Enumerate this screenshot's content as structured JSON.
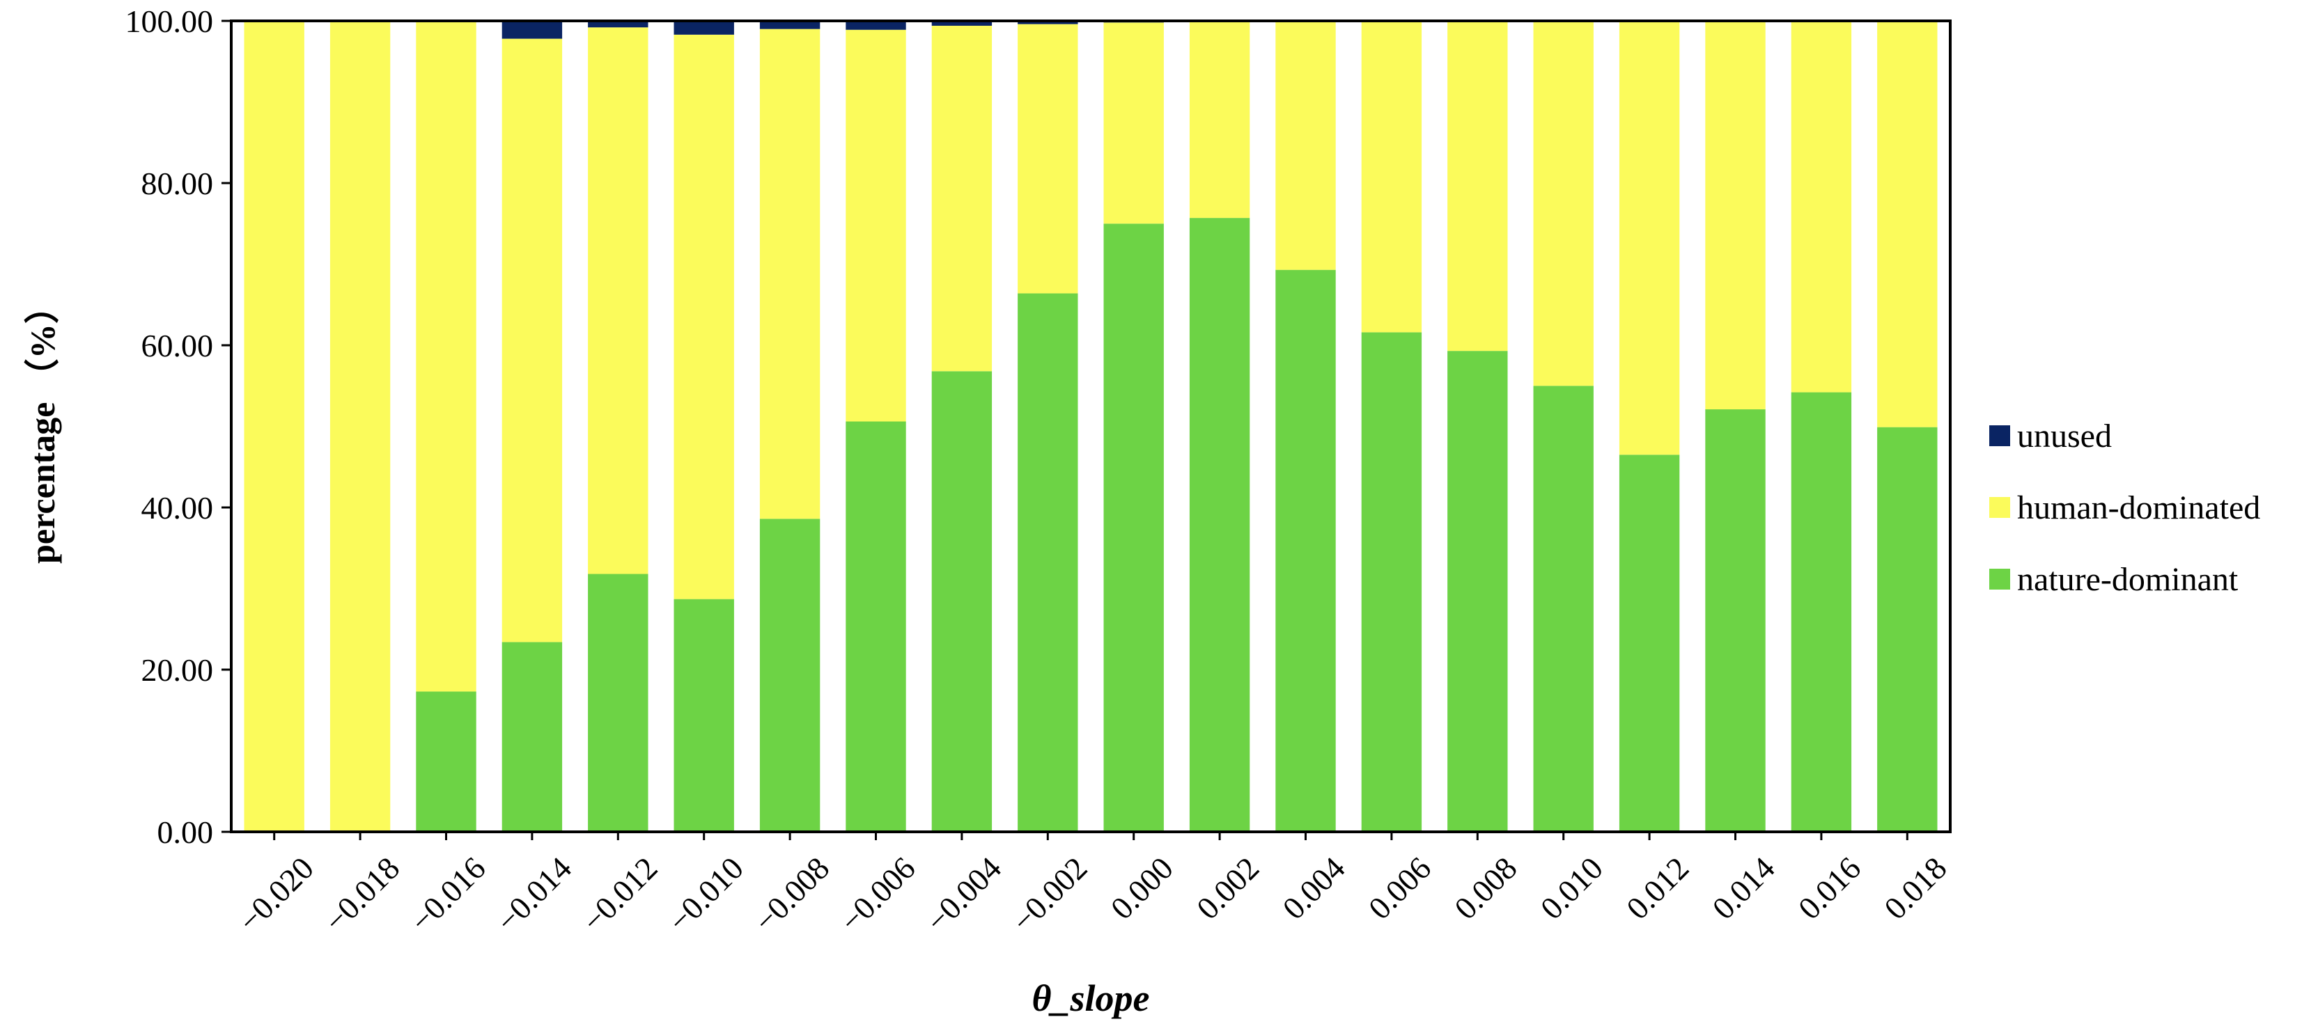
{
  "chart_data": {
    "type": "bar",
    "stacked": true,
    "title": "",
    "xlabel": "θ_slope",
    "ylabel": "percentage （%）",
    "ylim": [
      0,
      100
    ],
    "yticks": [
      "0.00",
      "20.00",
      "40.00",
      "60.00",
      "80.00",
      "100.00"
    ],
    "categories": [
      "−0.020",
      "−0.018",
      "−0.016",
      "−0.014",
      "−0.012",
      "−0.010",
      "−0.008",
      "−0.006",
      "−0.004",
      "−0.002",
      "0.000",
      "0.002",
      "0.004",
      "0.006",
      "0.008",
      "0.010",
      "0.012",
      "0.014",
      "0.016",
      "0.018"
    ],
    "series": [
      {
        "name": "nature-dominant",
        "color": "#6dd345",
        "values": [
          0,
          0,
          17.3,
          23.4,
          31.8,
          28.7,
          38.6,
          50.6,
          56.8,
          66.4,
          75.0,
          75.7,
          69.3,
          61.6,
          59.3,
          55.0,
          46.5,
          52.1,
          54.2,
          49.9
        ]
      },
      {
        "name": "human-dominated",
        "color": "#fbfb5b",
        "values": [
          100,
          100,
          82.7,
          74.4,
          67.4,
          69.6,
          60.4,
          48.3,
          42.6,
          33.2,
          24.8,
          24.2,
          30.6,
          38.3,
          40.6,
          44.9,
          53.4,
          47.8,
          45.7,
          50.0
        ]
      },
      {
        "name": "unused",
        "color": "#0a2463",
        "values": [
          0,
          0,
          0,
          2.2,
          0.8,
          1.7,
          1.0,
          1.1,
          0.6,
          0.4,
          0.2,
          0.1,
          0.1,
          0.1,
          0.1,
          0.1,
          0.1,
          0.1,
          0.1,
          0.1
        ]
      }
    ],
    "legend": {
      "placement": "right",
      "order": [
        "unused",
        "human-dominated",
        "nature-dominant"
      ]
    },
    "grid": false
  }
}
